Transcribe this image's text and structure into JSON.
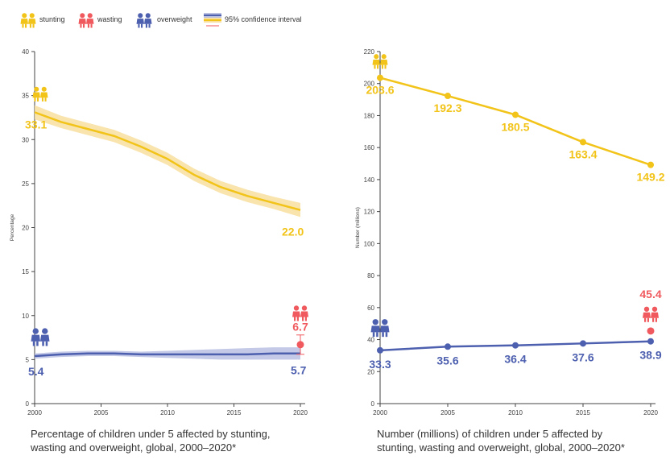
{
  "legend": {
    "stunting": "stunting",
    "wasting": "wasting",
    "overweight": "overweight",
    "ci": "95% confidence interval"
  },
  "colors": {
    "stunting": "#F2C318",
    "stunting_band": "#F8DFA0",
    "wasting": "#F05A5E",
    "overweight": "#4D5FAF",
    "overweight_band": "#B9C0E2",
    "axis": "#444444"
  },
  "icons": {
    "stunting": "children-pair-icon",
    "wasting": "children-pair-icon",
    "overweight": "children-pair-icon"
  },
  "chart_data": [
    {
      "type": "line",
      "caption_line1": "Percentage of children under 5 affected by stunting,",
      "caption_line2": "wasting and overweight, global, 2000–2020*",
      "ylabel": "Percentage",
      "xlim": [
        2000,
        2020
      ],
      "ylim": [
        0,
        40
      ],
      "x_ticks": [
        "2000",
        "2005",
        "2010",
        "2015",
        "2020"
      ],
      "y_ticks": [
        "0",
        "5",
        "10",
        "15",
        "20",
        "25",
        "30",
        "35",
        "40"
      ],
      "grid": false,
      "series": [
        {
          "name": "stunting",
          "x": [
            2000,
            2002,
            2004,
            2006,
            2008,
            2010,
            2012,
            2014,
            2016,
            2018,
            2020
          ],
          "values": [
            33.1,
            32.0,
            31.2,
            30.4,
            29.2,
            27.8,
            26.0,
            24.6,
            23.6,
            22.8,
            22.0
          ],
          "ci_lower": [
            32.3,
            31.3,
            30.5,
            29.7,
            28.5,
            27.1,
            25.3,
            23.9,
            22.9,
            22.1,
            21.2
          ],
          "ci_upper": [
            33.9,
            32.7,
            31.9,
            31.1,
            29.9,
            28.5,
            26.7,
            25.3,
            24.3,
            23.5,
            22.8
          ],
          "start_label": "33.1",
          "end_label": "22.0"
        },
        {
          "name": "overweight",
          "x": [
            2000,
            2002,
            2004,
            2006,
            2008,
            2010,
            2012,
            2014,
            2016,
            2018,
            2020
          ],
          "values": [
            5.4,
            5.6,
            5.7,
            5.7,
            5.6,
            5.6,
            5.6,
            5.6,
            5.6,
            5.7,
            5.7
          ],
          "ci_lower": [
            5.1,
            5.3,
            5.4,
            5.4,
            5.3,
            5.2,
            5.1,
            5.0,
            5.0,
            5.0,
            5.0
          ],
          "ci_upper": [
            5.7,
            5.9,
            6.0,
            6.0,
            5.9,
            6.0,
            6.1,
            6.2,
            6.3,
            6.4,
            6.4
          ],
          "start_label": "5.4",
          "end_label": "5.7"
        },
        {
          "name": "wasting",
          "x": [
            2020
          ],
          "values": [
            6.7
          ],
          "ci_lower": [
            5.6
          ],
          "ci_upper": [
            7.8
          ],
          "end_label": "6.7"
        }
      ]
    },
    {
      "type": "line",
      "caption_line1": "Number (millions) of children under 5 affected by",
      "caption_line2": "stunting, wasting and overweight, global, 2000–2020*",
      "ylabel": "Number (millions)",
      "xlim": [
        2000,
        2020
      ],
      "ylim": [
        0,
        220
      ],
      "x_ticks": [
        "2000",
        "2005",
        "2010",
        "2015",
        "2020"
      ],
      "y_ticks": [
        "0",
        "20",
        "40",
        "60",
        "80",
        "100",
        "120",
        "140",
        "160",
        "180",
        "200",
        "220"
      ],
      "grid": false,
      "series": [
        {
          "name": "stunting",
          "x": [
            2000,
            2005,
            2010,
            2015,
            2020
          ],
          "values": [
            203.6,
            192.3,
            180.5,
            163.4,
            149.2
          ],
          "labels": [
            "203.6",
            "192.3",
            "180.5",
            "163.4",
            "149.2"
          ]
        },
        {
          "name": "overweight",
          "x": [
            2000,
            2005,
            2010,
            2015,
            2020
          ],
          "values": [
            33.3,
            35.6,
            36.4,
            37.6,
            38.9
          ],
          "labels": [
            "33.3",
            "35.6",
            "36.4",
            "37.6",
            "38.9"
          ]
        },
        {
          "name": "wasting",
          "x": [
            2020
          ],
          "values": [
            45.4
          ],
          "labels": [
            "45.4"
          ]
        }
      ]
    }
  ]
}
